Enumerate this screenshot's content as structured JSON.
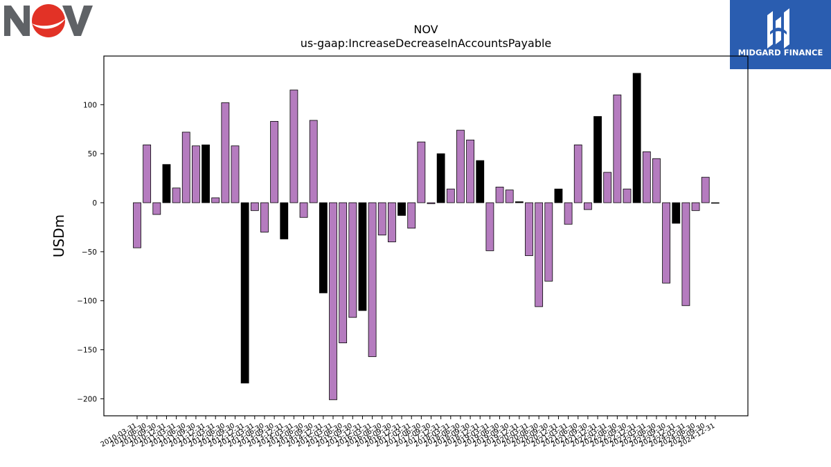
{
  "logos": {
    "nov": {
      "text": "NOV",
      "colors": {
        "letters": "#5f6266",
        "disc": "#e23226"
      }
    },
    "midgard": {
      "text": "MIDGARD FINANCE",
      "background": "#2a5db0"
    }
  },
  "chart_data": {
    "type": "bar",
    "title": "NOV",
    "subtitle": "us-gaap:IncreaseDecreaseInAccountsPayable",
    "xlabel": "",
    "ylabel": "USDm",
    "ylim": [
      -218,
      145
    ],
    "yticks": [
      100,
      50,
      0,
      -50,
      -100,
      -150,
      -200
    ],
    "grid": false,
    "colors": {
      "quarter": "#b57cbf",
      "year_end": "#000000",
      "edge": "#000000"
    },
    "categories": [
      "2010-03-31",
      "2010-06-30",
      "2010-09-30",
      "2010-12-31",
      "2011-03-31",
      "2011-06-30",
      "2011-09-30",
      "2011-12-31",
      "2012-03-31",
      "2012-06-30",
      "2012-09-30",
      "2012-12-31",
      "2013-03-31",
      "2013-06-30",
      "2013-09-30",
      "2013-12-31",
      "2014-03-31",
      "2014-06-30",
      "2014-09-30",
      "2014-12-31",
      "2015-03-31",
      "2015-06-30",
      "2015-09-30",
      "2015-12-31",
      "2016-03-31",
      "2016-06-30",
      "2016-09-30",
      "2016-12-31",
      "2017-03-31",
      "2017-06-30",
      "2017-09-30",
      "2017-12-31",
      "2018-03-31",
      "2018-06-30",
      "2018-09-30",
      "2018-12-31",
      "2019-03-31",
      "2019-06-30",
      "2019-09-30",
      "2019-12-31",
      "2020-03-31",
      "2020-06-30",
      "2020-09-30",
      "2020-12-31",
      "2021-03-31",
      "2021-06-30",
      "2021-09-30",
      "2021-12-31",
      "2022-03-31",
      "2022-06-30",
      "2022-09-30",
      "2022-12-31",
      "2023-03-31",
      "2023-06-30",
      "2023-09-30",
      "2023-12-31",
      "2024-03-31",
      "2024-06-30",
      "2024-09-30",
      "2024-12-31"
    ],
    "values": [
      -46,
      59,
      -12,
      39,
      15,
      72,
      58,
      59,
      5,
      102,
      58,
      -184,
      -8,
      -30,
      83,
      -37,
      115,
      -15,
      84,
      -92,
      -201,
      -143,
      -117,
      -110,
      -157,
      -33,
      -40,
      -13,
      -26,
      62,
      -1,
      50,
      14,
      74,
      64,
      43,
      -49,
      16,
      13,
      1,
      -54,
      -106,
      -80,
      14,
      -22,
      59,
      -7,
      88,
      31,
      110,
      14,
      132,
      52,
      45,
      -82,
      -21,
      -105,
      -8,
      26,
      0
    ],
    "year_end": [
      false,
      false,
      false,
      true,
      false,
      false,
      false,
      true,
      false,
      false,
      false,
      true,
      false,
      false,
      false,
      true,
      false,
      false,
      false,
      true,
      false,
      false,
      false,
      true,
      false,
      false,
      false,
      true,
      false,
      false,
      false,
      true,
      false,
      false,
      false,
      true,
      false,
      false,
      false,
      true,
      false,
      false,
      false,
      true,
      false,
      false,
      false,
      true,
      false,
      false,
      false,
      true,
      false,
      false,
      false,
      true,
      false,
      false,
      false,
      true
    ]
  }
}
